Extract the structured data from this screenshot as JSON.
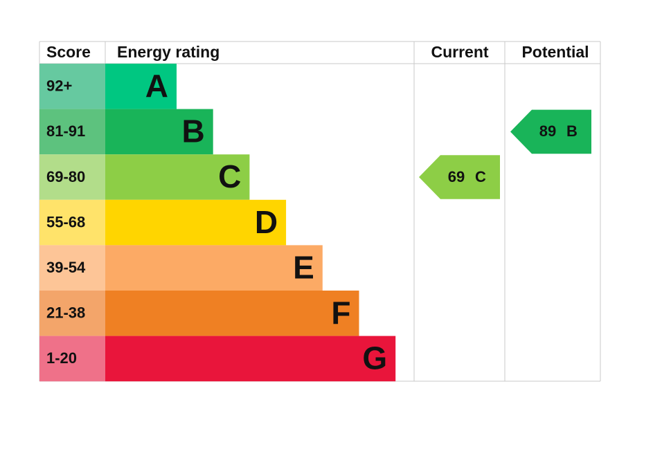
{
  "header": {
    "score": "Score",
    "energy_rating": "Energy rating",
    "current": "Current",
    "potential": "Potential"
  },
  "bands": [
    {
      "score": "92+",
      "letter": "A"
    },
    {
      "score": "81-91",
      "letter": "B"
    },
    {
      "score": "69-80",
      "letter": "C"
    },
    {
      "score": "55-68",
      "letter": "D"
    },
    {
      "score": "39-54",
      "letter": "E"
    },
    {
      "score": "21-38",
      "letter": "F"
    },
    {
      "score": "1-20",
      "letter": "G"
    }
  ],
  "current": {
    "value": 69,
    "letter": "C"
  },
  "potential": {
    "value": 89,
    "letter": "B"
  }
}
